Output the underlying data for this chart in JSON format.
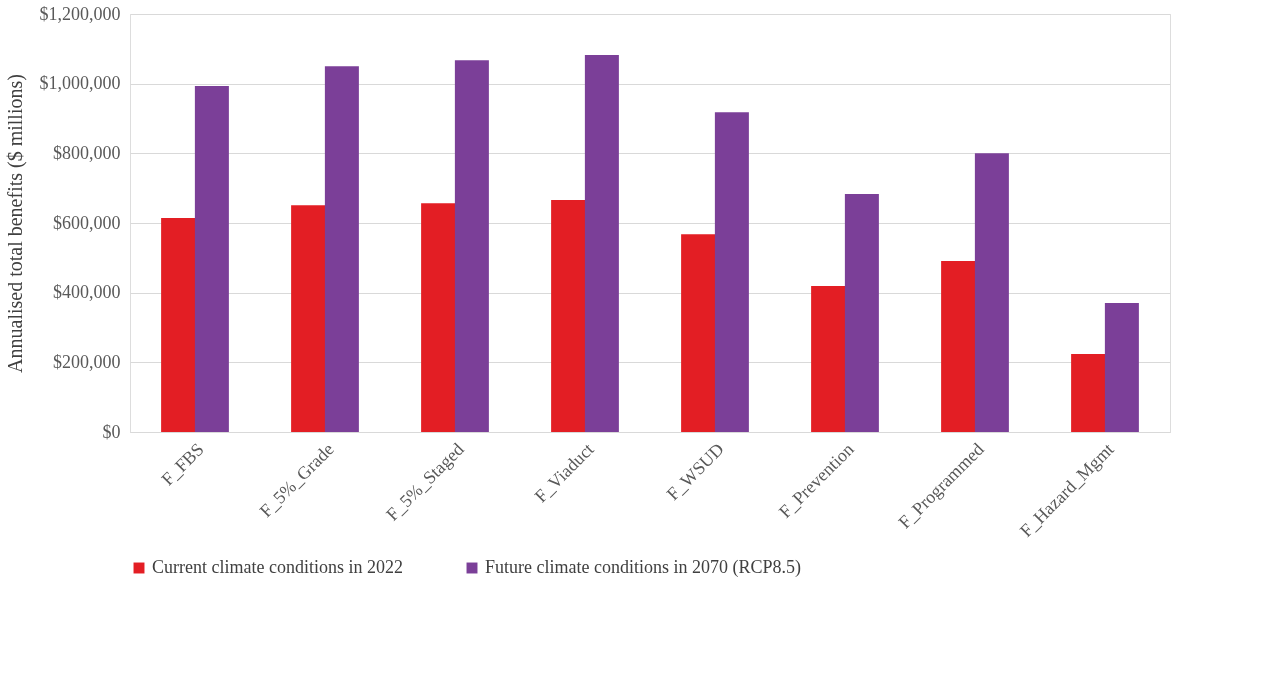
{
  "chart_data": {
    "type": "bar",
    "ylabel": "Annualised total benefits ($ millions)",
    "categories": [
      "F_FBS",
      "F_5%_Grade",
      "F_5%_Staged",
      "F_Viaduct",
      "F_WSUD",
      "F_Prevention",
      "F_Programmed",
      "F_Hazard_Mgmt"
    ],
    "series": [
      {
        "name": "Current climate conditions in 2022",
        "color": "#e31e24",
        "values": [
          614000,
          651000,
          657000,
          666000,
          568000,
          419000,
          491000,
          224000
        ]
      },
      {
        "name": "Future climate conditions in 2070 (RCP8.5)",
        "color": "#7b3f98",
        "values": [
          993000,
          1050000,
          1067000,
          1082000,
          918000,
          683000,
          800000,
          370000
        ]
      }
    ],
    "ylim": [
      0,
      1200000
    ],
    "yticks": [
      {
        "value": 0,
        "label": "$0"
      },
      {
        "value": 200000,
        "label": "$200,000"
      },
      {
        "value": 400000,
        "label": "$400,000"
      },
      {
        "value": 600000,
        "label": "$600,000"
      },
      {
        "value": 800000,
        "label": "$800,000"
      },
      {
        "value": 1000000,
        "label": "$1,000,000"
      },
      {
        "value": 1200000,
        "label": "$1,200,000"
      }
    ],
    "grid": "y",
    "legend": "bottom"
  }
}
